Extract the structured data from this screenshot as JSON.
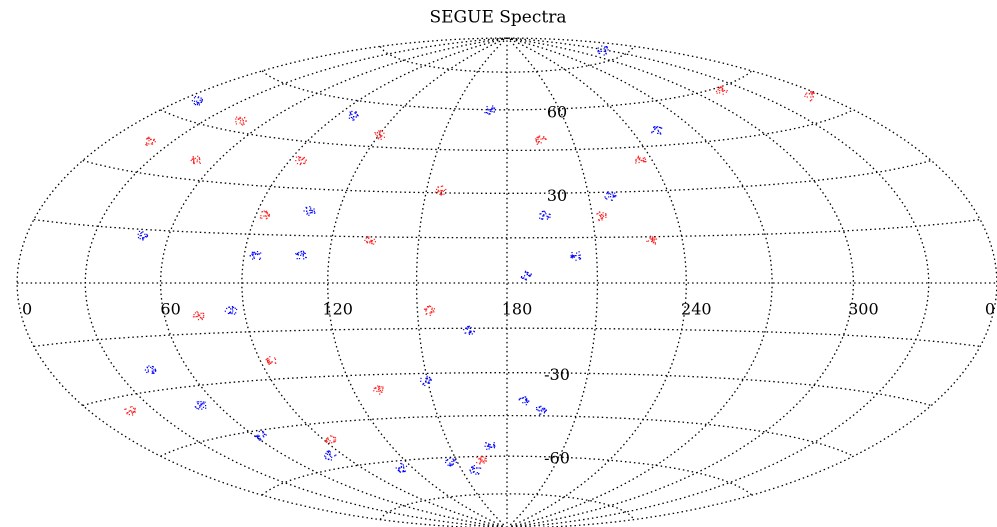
{
  "chart_data": {
    "type": "scatter",
    "title": "SEGUE Spectra",
    "projection": "hammer-aitoff",
    "xlim": [
      0,
      360
    ],
    "ylim": [
      -90,
      90
    ],
    "xticks": [
      0,
      60,
      120,
      180,
      240,
      300,
      {
        "value": 360,
        "label": "0"
      }
    ],
    "yticks": [
      -60,
      -30,
      30,
      60
    ],
    "grid": true,
    "grid_lon_step": 30,
    "grid_lat_step": 15,
    "series": [
      {
        "color": "#ff2020",
        "x": [
          19,
          50,
          46,
          94,
          120,
          155,
          195,
          213,
          229,
          317,
          354,
          94,
          130,
          93,
          164,
          73,
          154,
          19,
          133,
          93,
          235
        ],
        "y": [
          38,
          35.6,
          48.3,
          39,
          49.2,
          31,
          48.7,
          22.2,
          13.9,
          59.2,
          51,
          -24,
          -35.2,
          -50.7,
          -61.3,
          -9.5,
          -8.9,
          -33.6,
          13.9,
          21.1,
          40.5
        ]
      },
      {
        "color": "#0000ff",
        "x": [
          170,
          252,
          218,
          193,
          186,
          203,
          110,
          94,
          49,
          109,
          149,
          167,
          85,
          7,
          98,
          159,
          329,
          194,
          44,
          52.5,
          63,
          83,
          113,
          146,
          171,
          187
        ],
        "y": [
          60,
          50.3,
          29,
          22.6,
          2.6,
          9.2,
          8.8,
          8.6,
          13.4,
          23.2,
          -32.3,
          -15.5,
          -8.2,
          49.6,
          55.1,
          -65,
          78,
          -42.9,
          -24.3,
          -35.5,
          -46.4,
          -55.4,
          -62.4,
          -61.8,
          -55.8,
          -39.5
        ]
      }
    ]
  }
}
